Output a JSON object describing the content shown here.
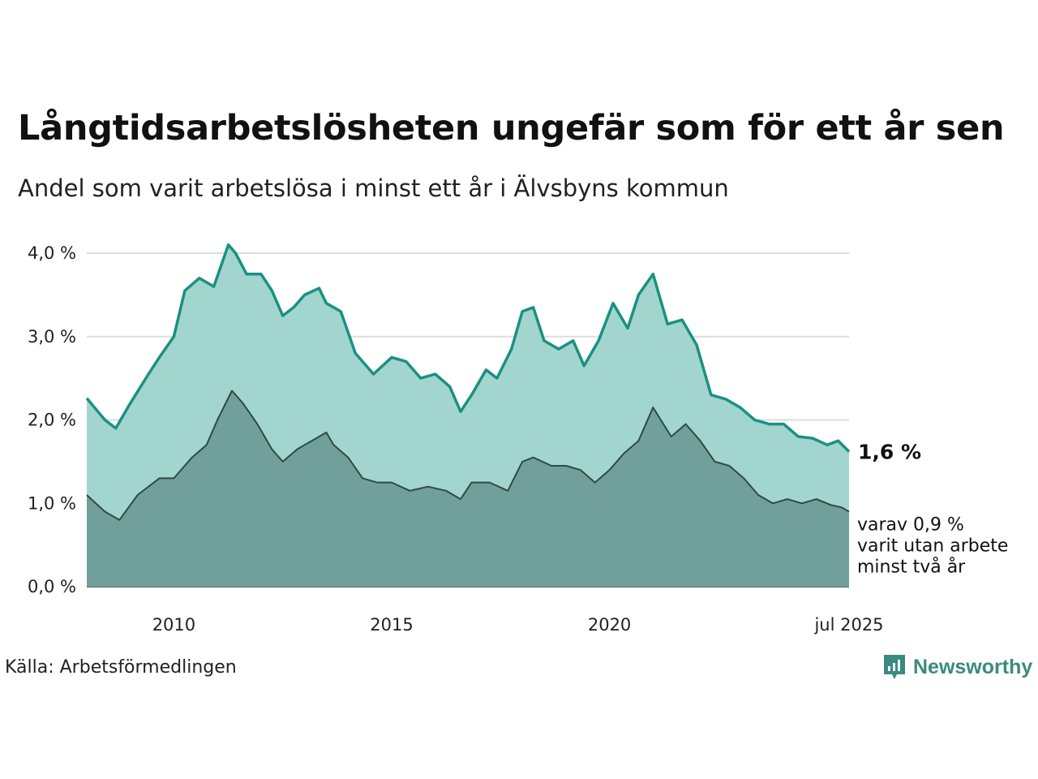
{
  "title": "Långtidsarbetslösheten ungefär som för ett år sen",
  "subtitle": "Andel som varit arbetslösa i minst ett år i Älvsbyns kommun",
  "source": "Källa: Arbetsförmedlingen",
  "brand": {
    "name": "Newsworthy",
    "icon": "newsworthy-logo-icon",
    "color": "#3a8a80"
  },
  "colors": {
    "total_line": "#1a9181",
    "total_fill": "#a3d5cf",
    "long_line": "#2f4a45",
    "long_fill": "#70a099",
    "grid": "#dddddd"
  },
  "chart_data": {
    "type": "area",
    "x_start": "2008-01",
    "x_end": "2025-07",
    "x_frequency": "monthly",
    "x_ticks": [
      {
        "date": "2010-01",
        "label": "2010"
      },
      {
        "date": "2015-01",
        "label": "2015"
      },
      {
        "date": "2020-01",
        "label": "2020"
      },
      {
        "date": "2025-07",
        "label": "jul 2025"
      }
    ],
    "y_ticks": [
      {
        "value": 0,
        "label": "0,0 %"
      },
      {
        "value": 1,
        "label": "1,0 %"
      },
      {
        "value": 2,
        "label": "2,0 %"
      },
      {
        "value": 3,
        "label": "3,0 %"
      },
      {
        "value": 4,
        "label": "4,0 %"
      }
    ],
    "ylim": [
      0,
      4.2
    ],
    "grid": true,
    "series": [
      {
        "name": "Andel som varit arbetslösa i minst ett år",
        "last_label": "1,6 %",
        "points": [
          [
            "2008-01",
            2.26
          ],
          [
            "2008-06",
            2.0
          ],
          [
            "2008-09",
            1.9
          ],
          [
            "2009-01",
            2.2
          ],
          [
            "2009-06",
            2.55
          ],
          [
            "2009-09",
            2.75
          ],
          [
            "2010-01",
            3.0
          ],
          [
            "2010-04",
            3.55
          ],
          [
            "2010-08",
            3.7
          ],
          [
            "2010-12",
            3.6
          ],
          [
            "2011-04",
            4.1
          ],
          [
            "2011-06",
            4.0
          ],
          [
            "2011-09",
            3.75
          ],
          [
            "2012-01",
            3.75
          ],
          [
            "2012-04",
            3.55
          ],
          [
            "2012-07",
            3.25
          ],
          [
            "2012-10",
            3.35
          ],
          [
            "2013-01",
            3.5
          ],
          [
            "2013-05",
            3.58
          ],
          [
            "2013-07",
            3.4
          ],
          [
            "2013-11",
            3.3
          ],
          [
            "2014-03",
            2.8
          ],
          [
            "2014-08",
            2.55
          ],
          [
            "2015-01",
            2.75
          ],
          [
            "2015-05",
            2.7
          ],
          [
            "2015-09",
            2.5
          ],
          [
            "2016-01",
            2.55
          ],
          [
            "2016-05",
            2.4
          ],
          [
            "2016-08",
            2.1
          ],
          [
            "2016-11",
            2.3
          ],
          [
            "2017-03",
            2.6
          ],
          [
            "2017-06",
            2.5
          ],
          [
            "2017-10",
            2.85
          ],
          [
            "2018-01",
            3.3
          ],
          [
            "2018-04",
            3.35
          ],
          [
            "2018-07",
            2.95
          ],
          [
            "2018-11",
            2.85
          ],
          [
            "2019-03",
            2.95
          ],
          [
            "2019-06",
            2.65
          ],
          [
            "2019-10",
            2.95
          ],
          [
            "2020-02",
            3.4
          ],
          [
            "2020-06",
            3.1
          ],
          [
            "2020-09",
            3.5
          ],
          [
            "2021-01",
            3.75
          ],
          [
            "2021-05",
            3.15
          ],
          [
            "2021-09",
            3.2
          ],
          [
            "2022-01",
            2.9
          ],
          [
            "2022-05",
            2.3
          ],
          [
            "2022-09",
            2.25
          ],
          [
            "2023-01",
            2.15
          ],
          [
            "2023-05",
            2.0
          ],
          [
            "2023-09",
            1.95
          ],
          [
            "2024-01",
            1.95
          ],
          [
            "2024-05",
            1.8
          ],
          [
            "2024-09",
            1.78
          ],
          [
            "2025-01",
            1.7
          ],
          [
            "2025-04",
            1.75
          ],
          [
            "2025-07",
            1.62
          ]
        ]
      },
      {
        "name": "varav varit utan arbete minst två år",
        "last_label": "varav 0,9 %\nvarit utan arbete\nminst två år",
        "points": [
          [
            "2008-01",
            1.1
          ],
          [
            "2008-06",
            0.9
          ],
          [
            "2008-10",
            0.8
          ],
          [
            "2009-03",
            1.1
          ],
          [
            "2009-09",
            1.3
          ],
          [
            "2010-01",
            1.3
          ],
          [
            "2010-06",
            1.55
          ],
          [
            "2010-10",
            1.7
          ],
          [
            "2011-01",
            2.0
          ],
          [
            "2011-05",
            2.35
          ],
          [
            "2011-08",
            2.2
          ],
          [
            "2011-12",
            1.95
          ],
          [
            "2012-04",
            1.65
          ],
          [
            "2012-07",
            1.5
          ],
          [
            "2012-11",
            1.65
          ],
          [
            "2013-03",
            1.75
          ],
          [
            "2013-07",
            1.85
          ],
          [
            "2013-09",
            1.7
          ],
          [
            "2014-01",
            1.55
          ],
          [
            "2014-05",
            1.3
          ],
          [
            "2014-09",
            1.25
          ],
          [
            "2015-01",
            1.25
          ],
          [
            "2015-06",
            1.15
          ],
          [
            "2015-11",
            1.2
          ],
          [
            "2016-04",
            1.15
          ],
          [
            "2016-08",
            1.05
          ],
          [
            "2016-11",
            1.25
          ],
          [
            "2017-04",
            1.25
          ],
          [
            "2017-09",
            1.15
          ],
          [
            "2018-01",
            1.5
          ],
          [
            "2018-04",
            1.55
          ],
          [
            "2018-09",
            1.45
          ],
          [
            "2019-01",
            1.45
          ],
          [
            "2019-05",
            1.4
          ],
          [
            "2019-09",
            1.25
          ],
          [
            "2020-01",
            1.4
          ],
          [
            "2020-05",
            1.6
          ],
          [
            "2020-09",
            1.75
          ],
          [
            "2021-01",
            2.15
          ],
          [
            "2021-06",
            1.8
          ],
          [
            "2021-10",
            1.95
          ],
          [
            "2022-02",
            1.75
          ],
          [
            "2022-06",
            1.5
          ],
          [
            "2022-10",
            1.45
          ],
          [
            "2023-02",
            1.3
          ],
          [
            "2023-06",
            1.1
          ],
          [
            "2023-10",
            1.0
          ],
          [
            "2024-02",
            1.05
          ],
          [
            "2024-06",
            1.0
          ],
          [
            "2024-10",
            1.05
          ],
          [
            "2025-02",
            0.98
          ],
          [
            "2025-05",
            0.95
          ],
          [
            "2025-07",
            0.9
          ]
        ]
      }
    ]
  }
}
